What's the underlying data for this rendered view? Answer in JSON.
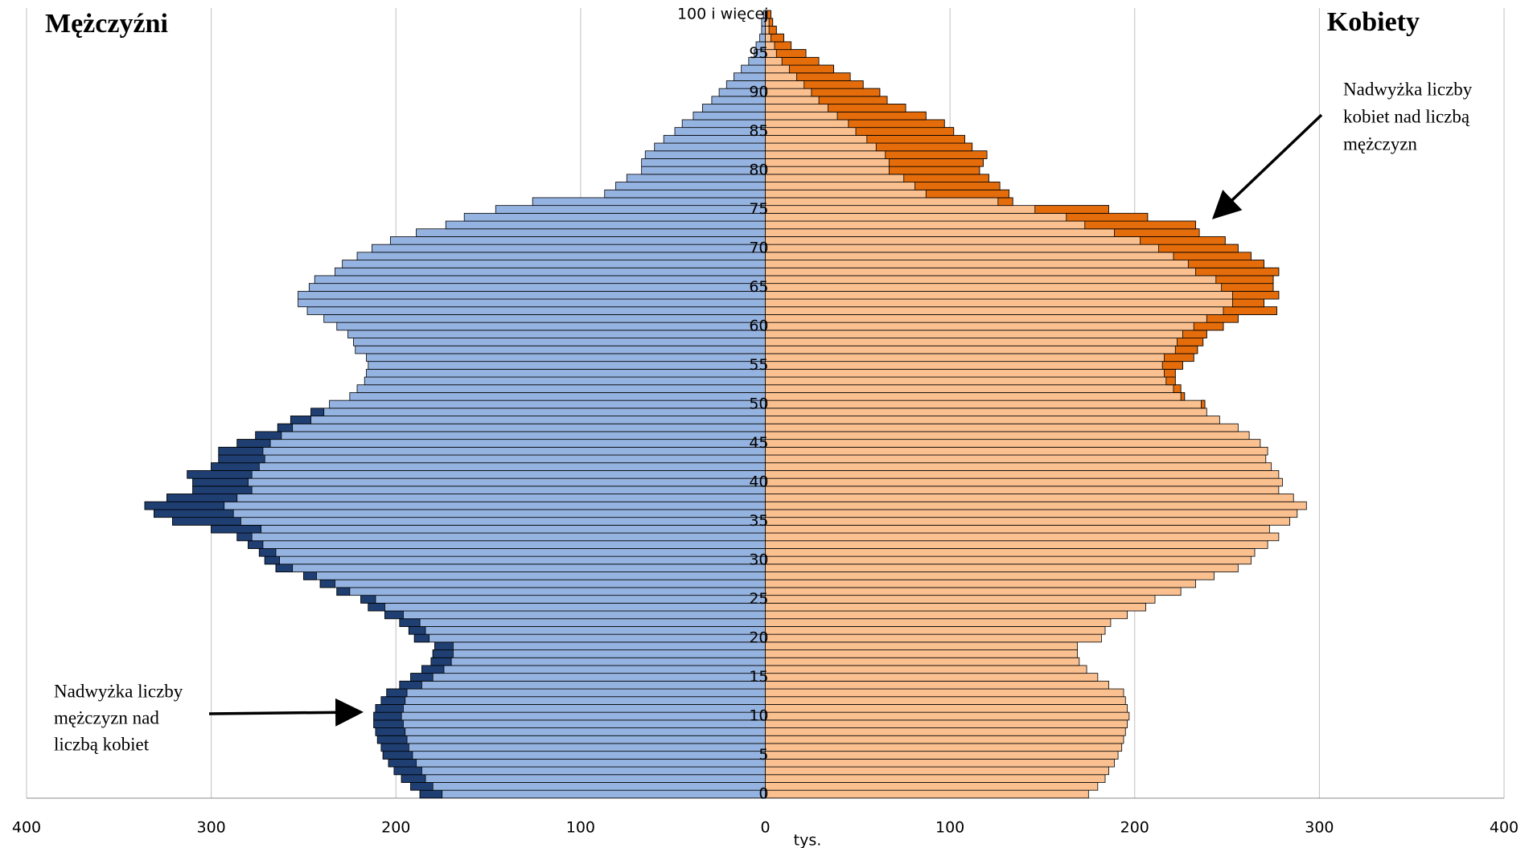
{
  "chart_data": {
    "type": "pyramid",
    "x_label": "tys.",
    "xlim": [
      -400,
      400
    ],
    "xticks": [
      {
        "value": -400,
        "label": "400"
      },
      {
        "value": -300,
        "label": "300"
      },
      {
        "value": -200,
        "label": "200"
      },
      {
        "value": -100,
        "label": "100"
      },
      0,
      100,
      200,
      300,
      400
    ],
    "grid": true,
    "categories": [
      "0",
      null,
      null,
      null,
      null,
      "5",
      null,
      null,
      null,
      null,
      "10",
      null,
      null,
      null,
      null,
      "15",
      null,
      null,
      null,
      null,
      "20",
      null,
      null,
      null,
      null,
      "25",
      null,
      null,
      null,
      null,
      "30",
      null,
      null,
      null,
      null,
      "35",
      null,
      null,
      null,
      null,
      "40",
      null,
      null,
      null,
      null,
      "45",
      null,
      null,
      null,
      null,
      "50",
      null,
      null,
      null,
      null,
      "55",
      null,
      null,
      null,
      null,
      "60",
      null,
      null,
      null,
      null,
      "65",
      null,
      null,
      null,
      null,
      "70",
      null,
      null,
      null,
      null,
      "75",
      null,
      null,
      null,
      null,
      "80",
      null,
      null,
      null,
      null,
      "85",
      null,
      null,
      null,
      null,
      "90",
      null,
      null,
      null,
      null,
      "95",
      null,
      null,
      null,
      null,
      "100 i więcej"
    ],
    "series": [
      {
        "name": "Mężczyźni",
        "side": "left",
        "color": "#95b3e0",
        "excess_color": "#1f3f73",
        "values": [
          187,
          192,
          197,
          201,
          204,
          207,
          208,
          210,
          211,
          212,
          212,
          211,
          208,
          205,
          198,
          192,
          186,
          181,
          180,
          179,
          190,
          193,
          198,
          206,
          215,
          219,
          232,
          241,
          250,
          265,
          271,
          274,
          280,
          286,
          300,
          321,
          331,
          336,
          324,
          310,
          310,
          313,
          300,
          296,
          296,
          286,
          276,
          264,
          257,
          246,
          236,
          225,
          221,
          217,
          216,
          215,
          216,
          222,
          223,
          226,
          232,
          239,
          248,
          253,
          253,
          247,
          244,
          233,
          229,
          221,
          213,
          203,
          189,
          173,
          163,
          146,
          126,
          87,
          81,
          75,
          67,
          67,
          65,
          60,
          55,
          49,
          45,
          39,
          34,
          29,
          25,
          21,
          17,
          13,
          9,
          6,
          5,
          3,
          2,
          2,
          1
        ]
      },
      {
        "name": "Kobiety",
        "side": "right",
        "color": "#fac090",
        "excess_color": "#e46c0a",
        "values": [
          175,
          180,
          184,
          186,
          189,
          191,
          193,
          194,
          195,
          196,
          197,
          196,
          195,
          194,
          186,
          180,
          174,
          170,
          169,
          169,
          182,
          184,
          187,
          196,
          206,
          211,
          225,
          233,
          243,
          256,
          263,
          265,
          272,
          278,
          273,
          284,
          288,
          293,
          286,
          278,
          280,
          278,
          274,
          271,
          272,
          268,
          262,
          256,
          246,
          239,
          238,
          227,
          225,
          222,
          222,
          226,
          232,
          234,
          237,
          239,
          248,
          256,
          277,
          270,
          278,
          275,
          275,
          278,
          270,
          263,
          256,
          249,
          235,
          233,
          207,
          186,
          134,
          132,
          127,
          121,
          116,
          118,
          120,
          112,
          108,
          102,
          97,
          87,
          76,
          66,
          62,
          53,
          46,
          37,
          29,
          22,
          14,
          10,
          6,
          4,
          3
        ]
      }
    ],
    "annotations": [
      {
        "lines": [
          "Nadwyżka liczby",
          "kobiet nad liczbą",
          "mężczyzn"
        ]
      },
      {
        "lines": [
          "Nadwyżka liczby",
          "mężczyzn nad",
          "liczbą kobiet"
        ]
      }
    ]
  }
}
